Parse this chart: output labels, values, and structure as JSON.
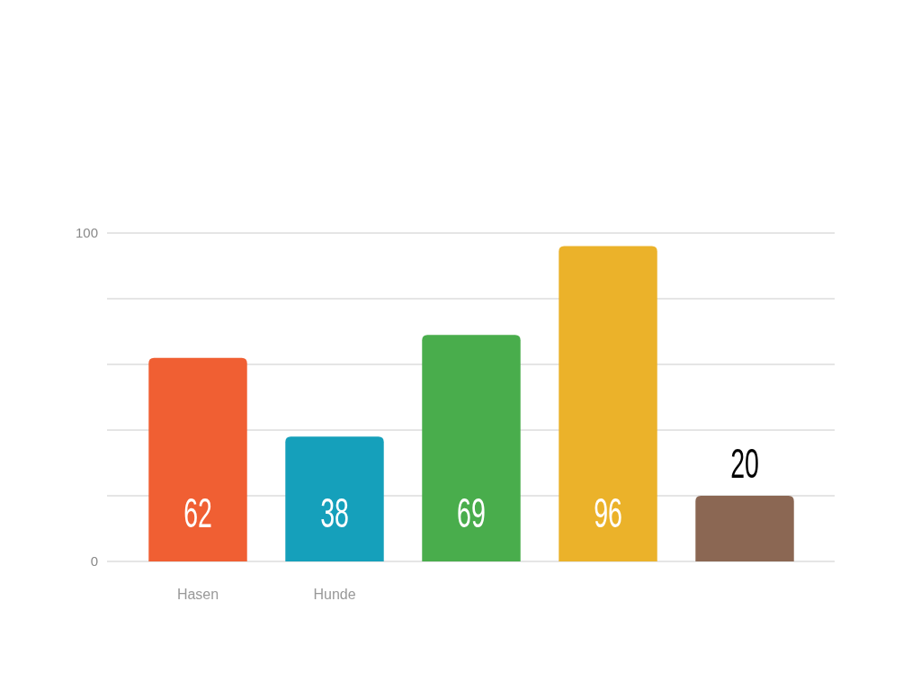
{
  "chart_data": {
    "type": "bar",
    "categories": [
      "Hasen",
      "Hunde",
      null,
      null,
      null
    ],
    "values": [
      62,
      38,
      69,
      96,
      20
    ],
    "colors": [
      "#f05f33",
      "#15a0bb",
      "#49ad4c",
      "#ebb22a",
      "#8b6753"
    ],
    "ylim": [
      0,
      100
    ],
    "yticks": [
      0,
      {
        "value": 20,
        "label": null
      },
      {
        "value": 40,
        "label": null
      },
      {
        "value": 60,
        "label": null
      },
      {
        "value": 80,
        "label": null
      },
      100
    ],
    "grid": "y",
    "data_labels": true
  }
}
